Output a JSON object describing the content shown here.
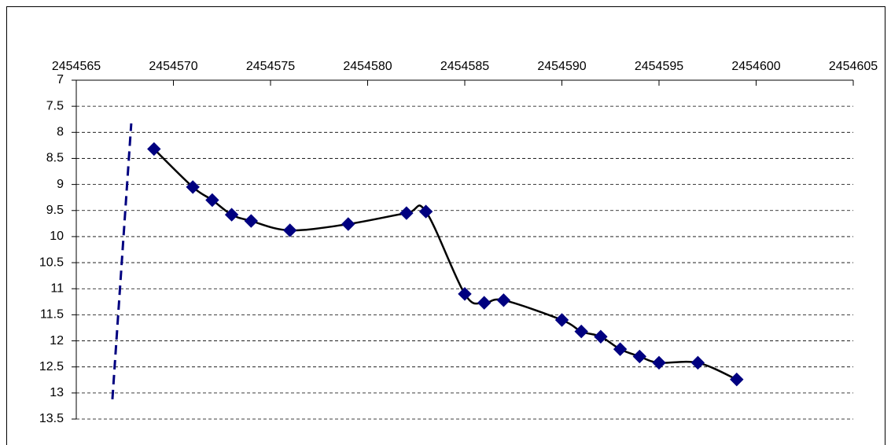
{
  "chart_data": {
    "type": "scatter",
    "xlim": [
      2454565,
      2454605
    ],
    "xticks": [
      2454565,
      2454570,
      2454575,
      2454580,
      2454585,
      2454590,
      2454595,
      2454600,
      2454605
    ],
    "ylim": [
      7,
      13.5
    ],
    "yticks": [
      7,
      7.5,
      8,
      8.5,
      9,
      9.5,
      10,
      10.5,
      11,
      11.5,
      12,
      12.5,
      13,
      13.5
    ],
    "y_reversed": true,
    "x_axis_position": "top",
    "grid": true,
    "series": [
      {
        "color": "#000000",
        "marker_color": "#000080",
        "marker": "diamond",
        "smooth": true,
        "dash": false,
        "x": [
          2454569,
          2454571,
          2454572,
          2454573,
          2454574,
          2454576,
          2454579,
          2454582,
          2454583,
          2454585,
          2454586,
          2454587,
          2454590,
          2454591,
          2454592,
          2454593,
          2454594,
          2454595,
          2454597,
          2454599
        ],
        "values": [
          8.32,
          9.05,
          9.3,
          9.58,
          9.7,
          9.88,
          9.76,
          9.55,
          9.52,
          11.1,
          11.27,
          11.22,
          11.6,
          11.82,
          11.92,
          12.16,
          12.3,
          12.42,
          12.42,
          12.74
        ]
      },
      {
        "color": "#000080",
        "marker": "none",
        "smooth": false,
        "dash": true,
        "x": [
          2454566.86,
          2454567.83
        ],
        "values": [
          13.12,
          7.83
        ]
      }
    ]
  }
}
